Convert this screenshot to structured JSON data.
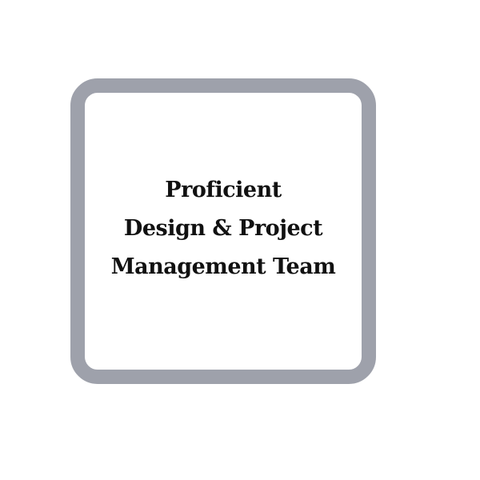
{
  "card": {
    "title_lines": [
      "Proficient",
      "Design & Project",
      "Management Team"
    ],
    "border_color": "#9ea1ab",
    "text_color": "#111111",
    "background_color": "#ffffff"
  }
}
